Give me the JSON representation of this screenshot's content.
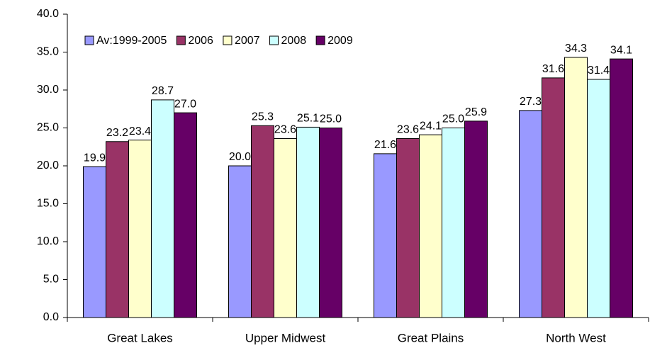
{
  "chart_data": {
    "type": "bar",
    "categories": [
      "Great Lakes",
      "Upper Midwest",
      "Great Plains",
      "North West"
    ],
    "series": [
      {
        "name": "Av:1999-2005",
        "color": "#9999ff",
        "values": [
          19.9,
          20.0,
          21.6,
          27.3
        ],
        "value_labels": [
          "19.9",
          "20.0",
          "21.6",
          "27.3"
        ]
      },
      {
        "name": "2006",
        "color": "#993366",
        "values": [
          23.2,
          25.3,
          23.6,
          31.6
        ],
        "value_labels": [
          "23.2",
          "25.3",
          "23.6",
          "31.6"
        ]
      },
      {
        "name": "2007",
        "color": "#ffffcc",
        "values": [
          23.4,
          23.6,
          24.1,
          34.3
        ],
        "value_labels": [
          "23.4",
          "23.6",
          "24.1",
          "34.3"
        ]
      },
      {
        "name": "2008",
        "color": "#ccffff",
        "values": [
          28.7,
          25.1,
          25.0,
          31.4
        ],
        "value_labels": [
          "28.7",
          "25.1",
          "25.0",
          "31.4"
        ]
      },
      {
        "name": "2009",
        "color": "#660066",
        "values": [
          27.0,
          25.0,
          25.9,
          34.1
        ],
        "value_labels": [
          "27.0",
          "25.0",
          "25.9",
          "34.1"
        ]
      }
    ],
    "ylim": [
      0,
      40
    ],
    "yticks": [
      {
        "value": 0,
        "label": "0.0"
      },
      {
        "value": 5,
        "label": "5.0"
      },
      {
        "value": 10,
        "label": "10.0"
      },
      {
        "value": 15,
        "label": "15.0"
      },
      {
        "value": 20,
        "label": "20.0"
      },
      {
        "value": 25,
        "label": "25.0"
      },
      {
        "value": 30,
        "label": "30.0"
      },
      {
        "value": 35,
        "label": "35.0"
      },
      {
        "value": 40,
        "label": "40.0"
      }
    ],
    "legend": "top-left"
  }
}
